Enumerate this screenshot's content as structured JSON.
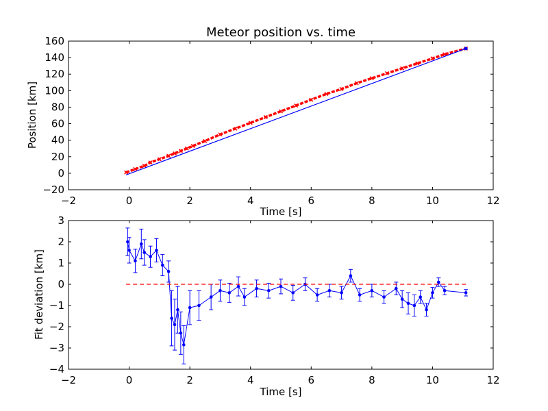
{
  "chart_data": [
    {
      "type": "scatter",
      "title": "Meteor position vs. time",
      "xlabel": "Time [s]",
      "ylabel": "Position [km]",
      "xlim": [
        -2,
        12
      ],
      "ylim": [
        -20,
        160
      ],
      "xticks": [
        "−2",
        "0",
        "2",
        "4",
        "6",
        "8",
        "10",
        "12"
      ],
      "yticks": [
        "−20",
        "0",
        "20",
        "40",
        "60",
        "80",
        "100",
        "120",
        "140",
        "160"
      ],
      "grid": false,
      "series": [
        {
          "role": "measured",
          "color": "#ff0000",
          "marker": "x",
          "x": [
            -0.1,
            0.2,
            0.5,
            0.7,
            1.0,
            1.3,
            1.5,
            1.7,
            1.9,
            2.1,
            2.5,
            3.0,
            3.5,
            4.0,
            4.5,
            5.0,
            5.5,
            6.0,
            6.5,
            7.0,
            7.5,
            8.0,
            8.5,
            9.0,
            9.5,
            10.0,
            10.4,
            11.1
          ],
          "y": [
            1,
            5,
            9,
            13,
            17,
            21,
            24,
            27,
            30,
            33,
            39,
            47,
            54,
            61,
            68,
            75,
            82,
            89,
            96,
            102,
            109,
            115,
            121,
            127,
            133,
            139,
            144,
            151
          ]
        },
        {
          "role": "fit",
          "color": "#0000ff",
          "marker": "line",
          "x": [
            -0.1,
            11.1
          ],
          "y": [
            -2,
            151
          ]
        }
      ]
    },
    {
      "type": "scatter",
      "title": "",
      "xlabel": "Time [s]",
      "ylabel": "Fit deviation [km]",
      "xlim": [
        -2,
        12
      ],
      "ylim": [
        -4,
        3
      ],
      "xticks": [
        "−2",
        "0",
        "2",
        "4",
        "6",
        "8",
        "10",
        "12"
      ],
      "yticks": [
        "−4",
        "−3",
        "−2",
        "−1",
        "0",
        "1",
        "2",
        "3"
      ],
      "grid": false,
      "zero_line": {
        "y": 0,
        "x": [
          -0.1,
          11.1
        ],
        "color": "#ff0000",
        "style": "dashed"
      },
      "series": [
        {
          "role": "deviation",
          "color": "#0000ff",
          "marker": "o",
          "x": [
            -0.05,
            0.0,
            0.2,
            0.4,
            0.5,
            0.7,
            0.9,
            1.1,
            1.3,
            1.4,
            1.5,
            1.6,
            1.7,
            1.8,
            2.0,
            2.3,
            2.7,
            3.0,
            3.3,
            3.6,
            3.8,
            4.2,
            4.6,
            5.0,
            5.4,
            5.8,
            6.2,
            6.6,
            7.0,
            7.3,
            7.6,
            8.0,
            8.4,
            8.8,
            9.0,
            9.2,
            9.4,
            9.6,
            9.8,
            10.0,
            10.2,
            10.4,
            11.1
          ],
          "y": [
            2.0,
            1.6,
            1.1,
            1.9,
            1.5,
            1.3,
            1.6,
            0.9,
            0.6,
            -1.6,
            -1.9,
            -1.2,
            -2.3,
            -2.85,
            -1.1,
            -1.0,
            -0.6,
            -0.3,
            -0.4,
            -0.1,
            -0.6,
            -0.2,
            -0.3,
            -0.1,
            -0.4,
            0.0,
            -0.5,
            -0.3,
            -0.4,
            0.4,
            -0.5,
            -0.3,
            -0.6,
            -0.2,
            -0.7,
            -0.9,
            -1.0,
            -0.6,
            -1.2,
            -0.4,
            0.1,
            -0.3,
            -0.4
          ],
          "yerr": [
            0.65,
            0.6,
            0.55,
            0.7,
            0.6,
            0.5,
            0.55,
            0.5,
            0.5,
            1.3,
            1.2,
            1.1,
            1.0,
            0.9,
            0.8,
            0.7,
            0.6,
            0.5,
            0.45,
            0.45,
            0.4,
            0.4,
            0.35,
            0.35,
            0.35,
            0.3,
            0.3,
            0.3,
            0.3,
            0.3,
            0.3,
            0.3,
            0.3,
            0.3,
            0.4,
            0.5,
            0.5,
            0.3,
            0.3,
            0.25,
            0.2,
            0.2,
            0.15
          ]
        }
      ]
    }
  ]
}
